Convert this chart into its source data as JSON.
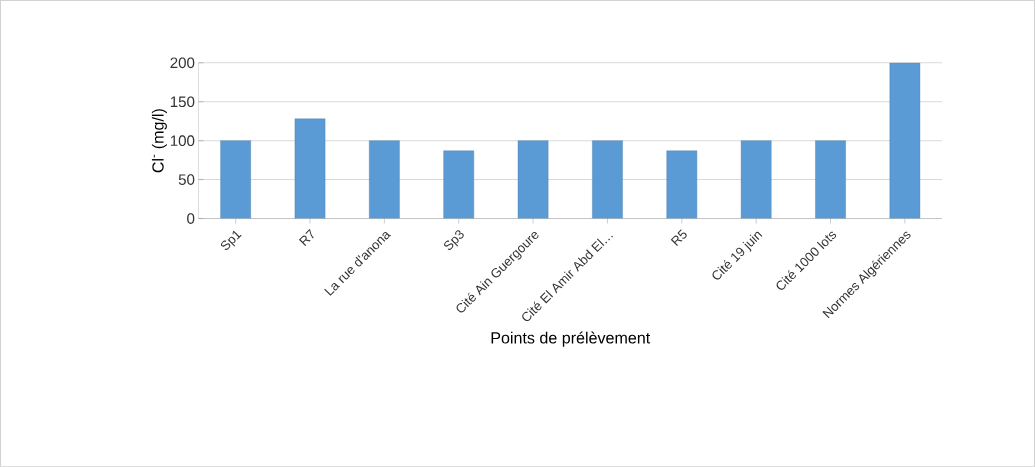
{
  "chart_data": {
    "type": "bar",
    "xlabel": "Points de prélèvement",
    "ylabel": "Cl$^{-}$ (mg/l)",
    "categories": [
      "Sp1",
      "R7",
      "La rue d'anona",
      "Sp3",
      "Cité Ain Guergoure",
      "Cité El Amir Abd El…",
      "R5",
      "Cité 19 juin",
      "Cité 1000 lots",
      "Normes Algériennes"
    ],
    "values": [
      100,
      128,
      100,
      87,
      100,
      100,
      87,
      100,
      100,
      200
    ],
    "color": "#5b9bd5",
    "ylim": [
      0,
      200
    ],
    "yticks": [
      0,
      50,
      100,
      150,
      200
    ],
    "grid": "y"
  }
}
